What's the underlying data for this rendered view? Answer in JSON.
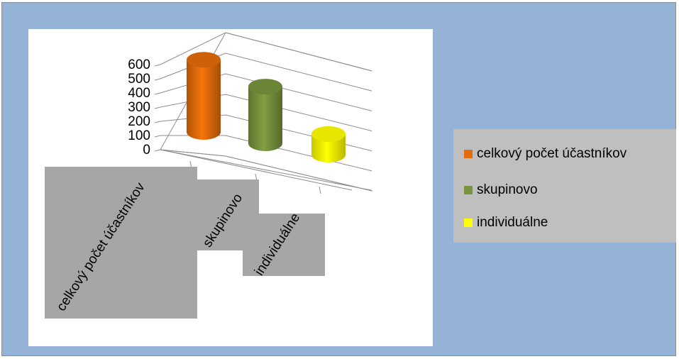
{
  "chart_data": {
    "type": "bar",
    "style": "3d-cylinder",
    "categories": [
      "celkový počet účastníkov",
      "skupinovo",
      "individuálne"
    ],
    "values": [
      560,
      440,
      160
    ],
    "colors": [
      "#e46c0a",
      "#77933c",
      "#ffff00"
    ],
    "yticks": [
      "0",
      "100",
      "200",
      "300",
      "400",
      "500",
      "600"
    ],
    "ylim": [
      0,
      600
    ],
    "grid": true,
    "legend_position": "right",
    "legend": [
      {
        "label": "celkový počet účastníkov",
        "color": "#e46c0a"
      },
      {
        "label": "skupinovo",
        "color": "#77933c"
      },
      {
        "label": "individuálne",
        "color": "#ffff00"
      }
    ]
  },
  "colors": {
    "background": "#95b3d7",
    "plot_area": "#ffffff",
    "label_box": "#a6a6a6",
    "legend_box": "#bfbfbf",
    "grid": "#8c8c8c"
  }
}
